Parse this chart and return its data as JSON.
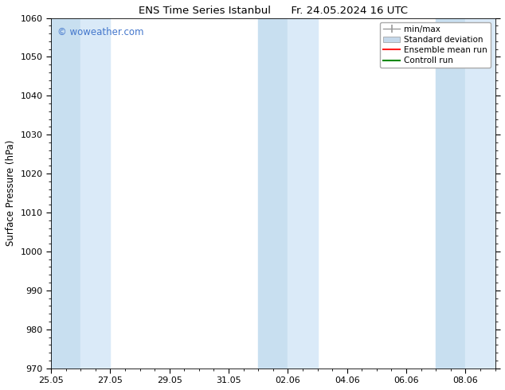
{
  "title": "ENS Time Series Istanbul      Fr. 24.05.2024 16 UTC",
  "ylabel": "Surface Pressure (hPa)",
  "ylim": [
    970,
    1060
  ],
  "yticks": [
    970,
    980,
    990,
    1000,
    1010,
    1020,
    1030,
    1040,
    1050,
    1060
  ],
  "xtick_labels": [
    "25.05",
    "27.05",
    "29.05",
    "31.05",
    "02.06",
    "04.06",
    "06.06",
    "08.06"
  ],
  "xtick_positions": [
    0,
    2,
    4,
    6,
    8,
    10,
    12,
    14
  ],
  "shaded_bands": [
    {
      "x_start": 0,
      "x_end": 1,
      "color": "#c8dff0"
    },
    {
      "x_start": 1,
      "x_end": 2,
      "color": "#daeaf8"
    },
    {
      "x_start": 7,
      "x_end": 8,
      "color": "#c8dff0"
    },
    {
      "x_start": 8,
      "x_end": 9,
      "color": "#daeaf8"
    },
    {
      "x_start": 13,
      "x_end": 14,
      "color": "#c8dff0"
    },
    {
      "x_start": 14,
      "x_end": 15,
      "color": "#daeaf8"
    }
  ],
  "watermark_text": "© woweather.com",
  "watermark_color": "#4477cc",
  "legend_labels": [
    "min/max",
    "Standard deviation",
    "Ensemble mean run",
    "Controll run"
  ],
  "legend_minmax_color": "#999999",
  "legend_std_color": "#c5d8ea",
  "legend_ens_color": "#ff2020",
  "legend_ctrl_color": "#008800",
  "background_color": "#ffffff",
  "plot_bg_color": "#ffffff",
  "x_min": 0,
  "x_max": 15
}
